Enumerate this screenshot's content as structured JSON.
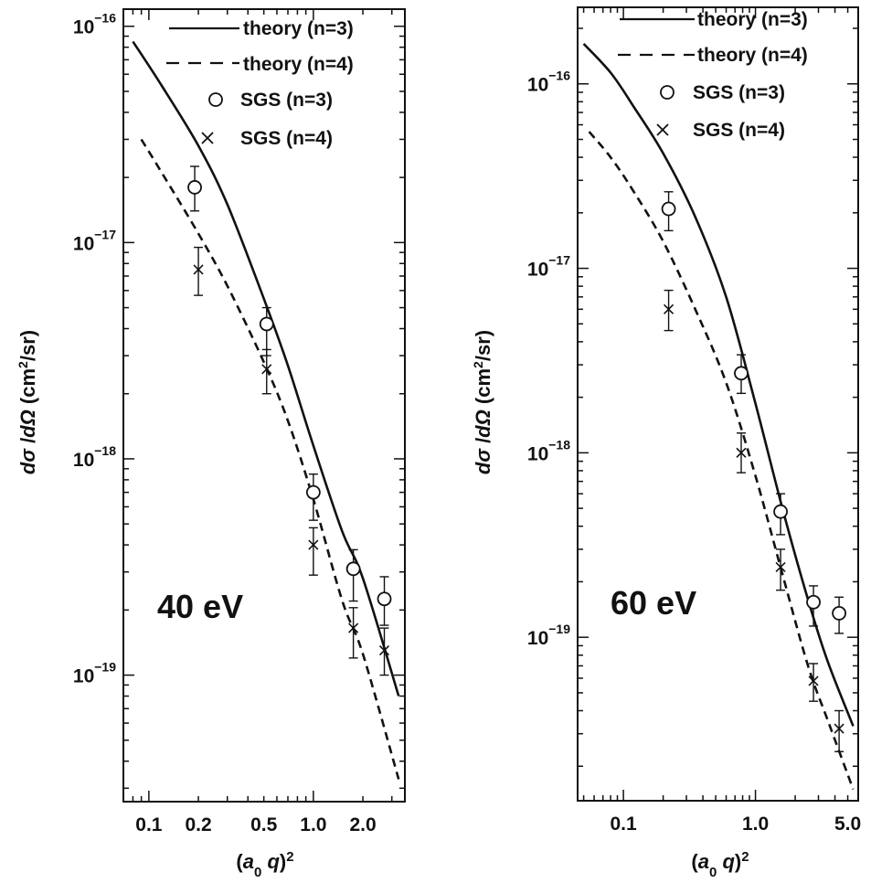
{
  "chart_data": [
    {
      "type": "line",
      "panel": "40 eV",
      "annotation": "40 eV",
      "xlabel": "(a0 q)2",
      "ylabel": "dσ/dΩ (cm2/sr)",
      "x_scale": "log",
      "y_scale": "log",
      "xlim": [
        0.07,
        3.6
      ],
      "ylim": [
        2.6e-20,
        1.2e-16
      ],
      "x_ticks": [
        {
          "value": 0.1,
          "label": "0.1"
        },
        {
          "value": 0.2,
          "label": "0.2"
        },
        {
          "value": 0.5,
          "label": "0.5"
        },
        {
          "value": 1.0,
          "label": "1.0"
        },
        {
          "value": 2.0,
          "label": "2.0"
        }
      ],
      "y_ticks": [
        {
          "value": 1e-16,
          "label": "10",
          "exponent": "−16"
        },
        {
          "value": 1e-17,
          "label": "10",
          "exponent": "−17"
        },
        {
          "value": 1e-18,
          "label": "10",
          "exponent": "−18"
        },
        {
          "value": 1e-19,
          "label": "10",
          "exponent": "−19"
        }
      ],
      "legend": [
        {
          "label": "theory (n=3)",
          "marker": "solid-line"
        },
        {
          "label": "theory (n=4)",
          "marker": "dashed-line"
        },
        {
          "label": "SGS (n=3)",
          "marker": "circle"
        },
        {
          "label": "SGS (n=4)",
          "marker": "cross"
        }
      ],
      "legend_placement": "top-right",
      "series": [
        {
          "name": "theory (n=3)",
          "style": "solid",
          "x": [
            0.08,
            0.12,
            0.2,
            0.3,
            0.5,
            0.7,
            1.0,
            1.5,
            2.0,
            3.3
          ],
          "y": [
            8.5e-17,
            5.3e-17,
            2.8e-17,
            1.5e-17,
            5.5e-18,
            2.7e-18,
            1.15e-18,
            4.6e-19,
            2.8e-19,
            8e-20
          ]
        },
        {
          "name": "theory (n=4)",
          "style": "dashed",
          "x": [
            0.09,
            0.12,
            0.2,
            0.3,
            0.5,
            0.7,
            1.0,
            1.5,
            2.0,
            3.3
          ],
          "y": [
            3e-17,
            2.1e-17,
            1.1e-17,
            6.3e-18,
            2.8e-18,
            1.5e-18,
            6.5e-19,
            2.2e-19,
            1.25e-19,
            3.3e-20
          ]
        },
        {
          "name": "SGS (n=3)",
          "style": "circle",
          "x": [
            0.19,
            0.52,
            1.0,
            1.75,
            2.7
          ],
          "y": [
            1.8e-17,
            4.2e-18,
            7e-19,
            3.1e-19,
            2.25e-19
          ],
          "err_low": [
            1.4e-17,
            3e-18,
            5.2e-19,
            2.2e-19,
            1.7e-19
          ],
          "err_high": [
            2.25e-17,
            5e-18,
            8.5e-19,
            3.8e-19,
            2.85e-19
          ]
        },
        {
          "name": "SGS (n=4)",
          "style": "cross",
          "x": [
            0.2,
            0.52,
            1.0,
            1.75,
            2.7
          ],
          "y": [
            7.5e-18,
            2.6e-18,
            4e-19,
            1.65e-19,
            1.3e-19
          ],
          "err_low": [
            5.7e-18,
            2e-18,
            2.9e-19,
            1.2e-19,
            1e-19
          ],
          "err_high": [
            9.5e-18,
            3.2e-18,
            4.8e-19,
            2.05e-19,
            1.65e-19
          ]
        }
      ]
    },
    {
      "type": "line",
      "panel": "60 eV",
      "annotation": "60 eV",
      "xlabel": "(a0 q)2",
      "ylabel": "dσ/dΩ (cm2/sr)",
      "x_scale": "log",
      "y_scale": "log",
      "xlim": [
        0.045,
        6.0
      ],
      "ylim": [
        1.3e-20,
        2.6e-16
      ],
      "x_ticks": [
        {
          "value": 0.1,
          "label": "0.1"
        },
        {
          "value": 1.0,
          "label": "1.0"
        },
        {
          "value": 5.0,
          "label": "5.0"
        }
      ],
      "y_ticks": [
        {
          "value": 1e-16,
          "label": "10",
          "exponent": "−16"
        },
        {
          "value": 1e-17,
          "label": "10",
          "exponent": "−17"
        },
        {
          "value": 1e-18,
          "label": "10",
          "exponent": "−18"
        },
        {
          "value": 1e-19,
          "label": "10",
          "exponent": "−19"
        }
      ],
      "legend": [
        {
          "label": "theory (n=3)",
          "marker": "solid-line"
        },
        {
          "label": "theory (n=4)",
          "marker": "dashed-line"
        },
        {
          "label": "SGS (n=3)",
          "marker": "circle"
        },
        {
          "label": "SGS (n=4)",
          "marker": "cross"
        }
      ],
      "legend_placement": "top-right",
      "series": [
        {
          "name": "theory (n=3)",
          "style": "solid",
          "x": [
            0.05,
            0.08,
            0.12,
            0.2,
            0.35,
            0.6,
            1.0,
            1.6,
            2.5,
            3.5,
            5.5
          ],
          "y": [
            1.65e-16,
            1.15e-16,
            7.5e-17,
            4.2e-17,
            1.9e-17,
            7e-18,
            1.85e-18,
            5e-19,
            1.6e-19,
            7.5e-20,
            3.3e-20
          ]
        },
        {
          "name": "theory (n=4)",
          "style": "dashed",
          "x": [
            0.055,
            0.08,
            0.12,
            0.2,
            0.35,
            0.6,
            1.0,
            1.6,
            2.5,
            3.5,
            5.5
          ],
          "y": [
            5.5e-17,
            4e-17,
            2.6e-17,
            1.4e-17,
            6e-18,
            2.4e-18,
            7.5e-19,
            2.2e-19,
            7e-20,
            3.6e-20,
            1.5e-20
          ]
        },
        {
          "name": "SGS (n=3)",
          "style": "circle",
          "x": [
            0.22,
            0.78,
            1.55,
            2.75,
            4.3
          ],
          "y": [
            2.1e-17,
            2.7e-18,
            4.8e-19,
            1.55e-19,
            1.35e-19
          ],
          "err_low": [
            1.6e-17,
            2.1e-18,
            3.6e-19,
            1.15e-19,
            1.05e-19
          ],
          "err_high": [
            2.6e-17,
            3.4e-18,
            6e-19,
            1.9e-19,
            1.65e-19
          ]
        },
        {
          "name": "SGS (n=4)",
          "style": "cross",
          "x": [
            0.22,
            0.78,
            1.55,
            2.75,
            4.3
          ],
          "y": [
            6e-18,
            1e-18,
            2.4e-19,
            5.8e-20,
            3.2e-20
          ],
          "err_low": [
            4.6e-18,
            7.8e-19,
            1.8e-19,
            4.5e-20,
            2.4e-20
          ],
          "err_high": [
            7.6e-18,
            1.28e-18,
            3e-19,
            7.2e-20,
            4e-20
          ]
        }
      ]
    }
  ]
}
